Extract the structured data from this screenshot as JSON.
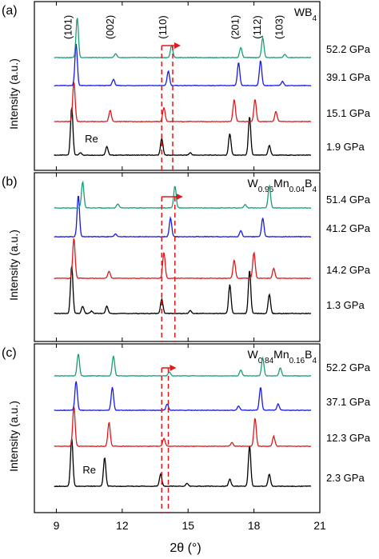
{
  "figure": {
    "xlabel": "2θ (°)",
    "xlim": [
      8,
      21
    ],
    "xticks": [
      "9",
      "12",
      "15",
      "18",
      "21"
    ]
  },
  "chart_data": [
    {
      "type": "line",
      "panel_label": "(a)",
      "compound": "WB4",
      "ylabel": "Intensity (a.u.)",
      "peak_labels": [
        {
          "text": "(101)",
          "x": 9.7
        },
        {
          "text": "(002)",
          "x": 11.6
        },
        {
          "text": "(110)",
          "x": 14.0
        },
        {
          "text": "(201)",
          "x": 17.3
        },
        {
          "text": "(112)",
          "x": 18.3
        },
        {
          "text": "(103)",
          "x": 19.3
        }
      ],
      "annotations": [
        {
          "text": "Re",
          "x": 10.6
        }
      ],
      "shift_marker": {
        "from": 13.8,
        "to": 14.3
      },
      "series": [
        {
          "pressure": "1.9 GPa",
          "color": "#000000",
          "peaks": [
            [
              9.7,
              1.0
            ],
            [
              10.1,
              0.05
            ],
            [
              11.3,
              0.18
            ],
            [
              13.8,
              0.35
            ],
            [
              15.1,
              0.05
            ],
            [
              16.9,
              0.45
            ],
            [
              17.8,
              0.8
            ],
            [
              18.7,
              0.2
            ]
          ]
        },
        {
          "pressure": "15.1 GPa",
          "color": "#e0191c",
          "peaks": [
            [
              9.8,
              1.0
            ],
            [
              11.45,
              0.28
            ],
            [
              13.9,
              0.35
            ],
            [
              17.1,
              0.55
            ],
            [
              18.05,
              0.55
            ],
            [
              19.0,
              0.25
            ]
          ]
        },
        {
          "pressure": "39.1 GPa",
          "color": "#1a1ae6",
          "peaks": [
            [
              9.9,
              1.0
            ],
            [
              11.6,
              0.15
            ],
            [
              14.1,
              0.35
            ],
            [
              17.3,
              0.55
            ],
            [
              18.3,
              0.6
            ],
            [
              19.3,
              0.1
            ]
          ]
        },
        {
          "pressure": "52.2 GPa",
          "color": "#1a9e77",
          "peaks": [
            [
              9.95,
              1.0
            ],
            [
              11.7,
              0.1
            ],
            [
              14.25,
              0.3
            ],
            [
              17.4,
              0.25
            ],
            [
              18.4,
              0.5
            ],
            [
              19.4,
              0.08
            ]
          ]
        }
      ]
    },
    {
      "type": "line",
      "panel_label": "(b)",
      "compound": "W0.96Mn0.04B4",
      "ylabel": "Intensity (a.u.)",
      "annotations": [],
      "shift_marker": {
        "from": 13.8,
        "to": 14.4
      },
      "series": [
        {
          "pressure": "1.3 GPa",
          "color": "#000000",
          "peaks": [
            [
              9.7,
              1.0
            ],
            [
              10.2,
              0.15
            ],
            [
              10.6,
              0.05
            ],
            [
              11.3,
              0.15
            ],
            [
              13.8,
              0.3
            ],
            [
              15.1,
              0.06
            ],
            [
              16.9,
              0.6
            ],
            [
              17.8,
              0.9
            ],
            [
              18.7,
              0.4
            ]
          ]
        },
        {
          "pressure": "14.2 GPa",
          "color": "#e0191c",
          "peaks": [
            [
              9.8,
              1.0
            ],
            [
              11.4,
              0.18
            ],
            [
              13.9,
              0.65
            ],
            [
              17.1,
              0.45
            ],
            [
              18.0,
              0.65
            ],
            [
              18.9,
              0.25
            ]
          ]
        },
        {
          "pressure": "41.2 GPa",
          "color": "#1a1ae6",
          "peaks": [
            [
              10.0,
              1.0
            ],
            [
              11.7,
              0.07
            ],
            [
              14.2,
              0.45
            ],
            [
              17.4,
              0.15
            ],
            [
              18.4,
              0.45
            ]
          ]
        },
        {
          "pressure": "51.4 GPa",
          "color": "#1a9e77",
          "peaks": [
            [
              10.2,
              0.65
            ],
            [
              11.8,
              0.1
            ],
            [
              14.4,
              0.55
            ],
            [
              17.6,
              0.08
            ],
            [
              18.7,
              0.55
            ]
          ]
        }
      ]
    },
    {
      "type": "line",
      "panel_label": "(c)",
      "compound": "W0.84Mn0.16B4",
      "ylabel": "Intensity (a.u.)",
      "annotations": [
        {
          "text": "Re",
          "x": 10.5
        }
      ],
      "shift_marker": {
        "from": 13.8,
        "to": 14.1
      },
      "series": [
        {
          "pressure": "2.3 GPa",
          "color": "#000000",
          "peaks": [
            [
              9.7,
              1.0
            ],
            [
              11.2,
              0.6
            ],
            [
              13.75,
              0.25
            ],
            [
              14.95,
              0.06
            ],
            [
              16.9,
              0.15
            ],
            [
              17.8,
              0.85
            ],
            [
              18.7,
              0.25
            ]
          ]
        },
        {
          "pressure": "12.3 GPa",
          "color": "#e0191c",
          "peaks": [
            [
              9.8,
              1.0
            ],
            [
              11.4,
              0.6
            ],
            [
              13.9,
              0.2
            ],
            [
              17.0,
              0.1
            ],
            [
              18.05,
              0.7
            ],
            [
              18.9,
              0.25
            ]
          ]
        },
        {
          "pressure": "37.1 GPa",
          "color": "#1a1ae6",
          "peaks": [
            [
              9.9,
              0.7
            ],
            [
              11.55,
              0.55
            ],
            [
              14.05,
              0.15
            ],
            [
              17.3,
              0.1
            ],
            [
              18.3,
              0.55
            ],
            [
              19.1,
              0.15
            ]
          ]
        },
        {
          "pressure": "52.2 GPa",
          "color": "#1a9e77",
          "peaks": [
            [
              10.0,
              0.55
            ],
            [
              11.6,
              0.5
            ],
            [
              14.15,
              0.1
            ],
            [
              17.4,
              0.15
            ],
            [
              18.4,
              0.45
            ],
            [
              19.2,
              0.2
            ]
          ]
        }
      ]
    }
  ]
}
